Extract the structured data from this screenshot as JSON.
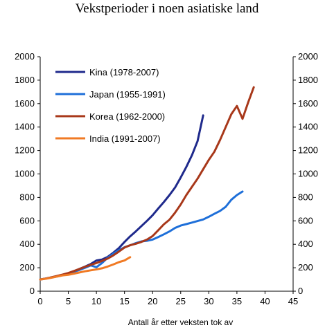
{
  "chart_data": {
    "type": "line",
    "title": "Vekstperioder i noen asiatiske land",
    "xlabel": "Antall år etter veksten tok av",
    "ylabel_left": "",
    "ylabel_right": "",
    "xlim": [
      0,
      45
    ],
    "ylim": [
      0,
      2000
    ],
    "xticks": [
      0,
      5,
      10,
      15,
      20,
      25,
      30,
      35,
      40,
      45
    ],
    "yticks": [
      0,
      200,
      400,
      600,
      800,
      1000,
      1200,
      1400,
      1600,
      1800,
      2000
    ],
    "grid": false,
    "legend_position": "top-left",
    "series": [
      {
        "name": "Kina (1978-2007)",
        "color": "#1f2a8c",
        "x": [
          0,
          1,
          2,
          3,
          4,
          5,
          6,
          7,
          8,
          9,
          10,
          11,
          12,
          13,
          14,
          15,
          16,
          17,
          18,
          19,
          20,
          21,
          22,
          23,
          24,
          25,
          26,
          27,
          28,
          29
        ],
        "y": [
          100,
          108,
          118,
          128,
          140,
          152,
          170,
          190,
          210,
          232,
          262,
          270,
          292,
          328,
          368,
          420,
          468,
          510,
          555,
          600,
          648,
          705,
          760,
          820,
          885,
          970,
          1060,
          1160,
          1280,
          1500
        ]
      },
      {
        "name": "Japan (1955-1991)",
        "color": "#1e6fd9",
        "x": [
          0,
          1,
          2,
          3,
          4,
          5,
          6,
          7,
          8,
          9,
          10,
          11,
          12,
          13,
          14,
          15,
          16,
          17,
          18,
          19,
          20,
          21,
          22,
          23,
          24,
          25,
          26,
          27,
          28,
          29,
          30,
          31,
          32,
          33,
          34,
          35,
          36
        ],
        "y": [
          100,
          108,
          116,
          125,
          136,
          148,
          165,
          182,
          200,
          220,
          205,
          240,
          285,
          320,
          350,
          375,
          392,
          410,
          425,
          430,
          440,
          462,
          485,
          510,
          540,
          560,
          572,
          585,
          598,
          612,
          635,
          660,
          685,
          720,
          780,
          820,
          850
        ]
      },
      {
        "name": "Korea (1962-2000)",
        "color": "#a8381a",
        "x": [
          0,
          1,
          2,
          3,
          4,
          5,
          6,
          7,
          8,
          9,
          10,
          11,
          12,
          13,
          14,
          15,
          16,
          17,
          18,
          19,
          20,
          21,
          22,
          23,
          24,
          25,
          26,
          27,
          28,
          29,
          30,
          31,
          32,
          33,
          34,
          35,
          36,
          37,
          38
        ],
        "y": [
          100,
          108,
          118,
          130,
          142,
          155,
          172,
          190,
          208,
          225,
          240,
          258,
          278,
          305,
          338,
          372,
          392,
          405,
          420,
          440,
          470,
          520,
          570,
          610,
          670,
          740,
          820,
          890,
          960,
          1040,
          1120,
          1190,
          1290,
          1400,
          1510,
          1580,
          1470,
          1610,
          1740
        ]
      },
      {
        "name": "India (1991-2007)",
        "color": "#f07a24",
        "x": [
          0,
          1,
          2,
          3,
          4,
          5,
          6,
          7,
          8,
          9,
          10,
          11,
          12,
          13,
          14,
          15,
          16
        ],
        "y": [
          100,
          106,
          115,
          125,
          135,
          140,
          150,
          160,
          170,
          178,
          186,
          195,
          210,
          228,
          248,
          262,
          290
        ]
      }
    ]
  }
}
